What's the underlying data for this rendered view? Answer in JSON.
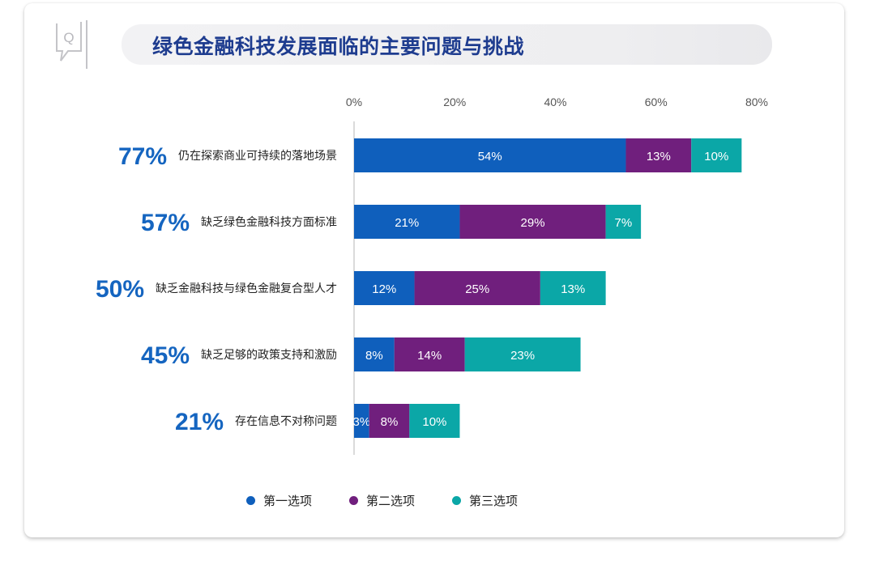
{
  "header": {
    "q_label": "Q",
    "title": "绿色金融科技发展面临的主要问题与挑战"
  },
  "chart_data": {
    "type": "bar",
    "orientation": "horizontal",
    "stacked": true,
    "title": "绿色金融科技发展面临的主要问题与挑战",
    "xlim": [
      0,
      80
    ],
    "xticks": [
      "0%",
      "20%",
      "40%",
      "60%",
      "80%"
    ],
    "categories": [
      "仍在探索商业可持续的落地场景",
      "缺乏绿色金融科技方面标准",
      "缺乏金融科技与绿色金融复合型人才",
      "缺乏足够的政策支持和激励",
      "存在信息不对称问题"
    ],
    "totals": [
      "77%",
      "57%",
      "50%",
      "45%",
      "21%"
    ],
    "series": [
      {
        "name": "第一选项",
        "color": "#0f5fbc",
        "values": [
          54,
          21,
          12,
          8,
          3
        ]
      },
      {
        "name": "第二选项",
        "color": "#701f7d",
        "values": [
          13,
          29,
          25,
          14,
          8
        ]
      },
      {
        "name": "第三选项",
        "color": "#0ba7a7",
        "values": [
          10,
          7,
          13,
          23,
          10
        ]
      }
    ],
    "grid": false,
    "legend_position": "bottom",
    "colors": {
      "total_label": "#1565c0",
      "category_label": "#222222",
      "axis": "#cfcfcf"
    }
  }
}
